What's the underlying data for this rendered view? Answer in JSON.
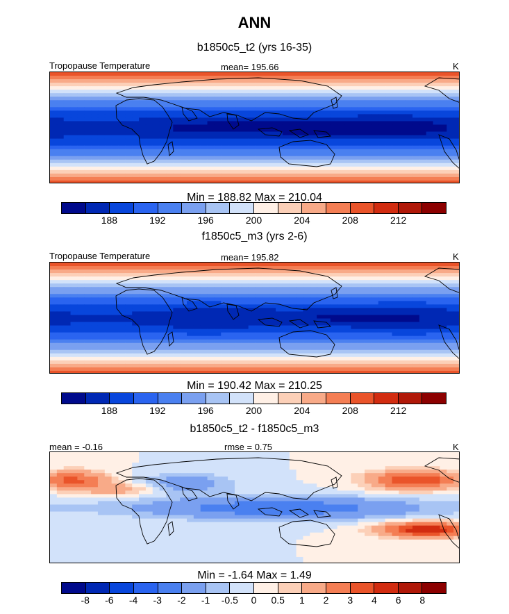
{
  "title": "ANN",
  "panels": [
    {
      "subtitle": "b1850c5_t2 (yrs 16-35)",
      "left_label": "Tropopause Temperature",
      "center_label": "mean= 195.66",
      "right_label": "K",
      "stats": "Min = 188.82 Max = 210.04",
      "field": "abs",
      "cmin": 188.82,
      "cmax": 210.04,
      "mean": 195.66
    },
    {
      "subtitle": "f1850c5_m3 (yrs 2-6)",
      "left_label": "Tropopause Temperature",
      "center_label": "mean= 195.82",
      "right_label": "K",
      "stats": "Min = 190.42 Max = 210.25",
      "field": "abs",
      "cmin": 190.42,
      "cmax": 210.25,
      "mean": 195.82
    },
    {
      "subtitle": "b1850c5_t2 - f1850c5_m3",
      "left_label": "mean =  -0.16",
      "center_label": "rmse =   0.75",
      "right_label": "K",
      "stats": "Min =  -1.64 Max =   1.49",
      "field": "diff",
      "cmin": -1.64,
      "cmax": 1.49,
      "mean": -0.16
    }
  ],
  "colorbars": {
    "abs": {
      "colors": [
        "#000a8c",
        "#0028b4",
        "#0846dc",
        "#2a64f0",
        "#4a80f0",
        "#7aa0f0",
        "#a8c4f4",
        "#d2e2fa",
        "#fff0e6",
        "#fcd0b8",
        "#f8aa88",
        "#f47e54",
        "#ea542a",
        "#d22c10",
        "#b01808",
        "#8c0000"
      ],
      "labels": [
        "188",
        "192",
        "196",
        "200",
        "204",
        "208",
        "212"
      ],
      "label_after_cells": [
        2,
        4,
        6,
        8,
        10,
        12,
        14
      ]
    },
    "diff": {
      "colors": [
        "#000a8c",
        "#0028b4",
        "#0846dc",
        "#2a64f0",
        "#4a80f0",
        "#7aa0f0",
        "#a8c4f4",
        "#d2e2fa",
        "#fff0e6",
        "#fcd0b8",
        "#f8aa88",
        "#f47e54",
        "#ea542a",
        "#d22c10",
        "#b01808",
        "#8c0000"
      ],
      "labels": [
        "-8",
        "-6",
        "-4",
        "-3",
        "-2",
        "-1",
        "-0.5",
        "0",
        "0.5",
        "1",
        "2",
        "3",
        "4",
        "6",
        "8"
      ],
      "label_after_cells": [
        1,
        2,
        3,
        4,
        5,
        6,
        7,
        8,
        9,
        10,
        11,
        12,
        13,
        14,
        15
      ]
    }
  }
}
